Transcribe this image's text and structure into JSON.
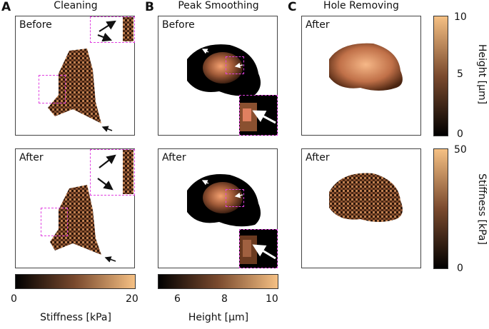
{
  "panels": {
    "a": {
      "letter": "A",
      "title": "Cleaning"
    },
    "b": {
      "letter": "B",
      "title": "Peak Smoothing"
    },
    "c": {
      "letter": "C",
      "title": "Hole Removing"
    }
  },
  "tags": {
    "before": "Before",
    "after": "After"
  },
  "colorbars": {
    "stiffness_h": {
      "label": "Stiffness [kPa]",
      "ticks": [
        "0",
        "20"
      ]
    },
    "height_h": {
      "label": "Height [μm]",
      "ticks": [
        "6",
        "8",
        "10"
      ]
    },
    "height_v": {
      "label": "Height [μm]",
      "ticks": [
        "10",
        "5",
        "0"
      ]
    },
    "stiffness_v": {
      "label": "Stiffness [kPa]",
      "ticks": [
        "50",
        "0"
      ]
    }
  },
  "colors": {
    "copper_dark": "#000000",
    "copper_light": "#f5c080",
    "inset_border": "#e040e0"
  },
  "icons": [
    "arrow-icon"
  ]
}
